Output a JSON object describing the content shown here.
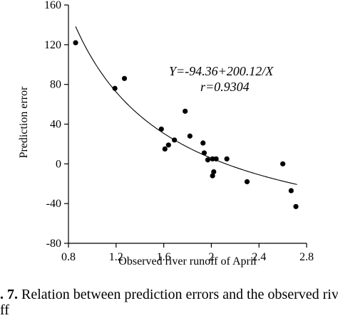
{
  "chart_data": {
    "type": "scatter",
    "xlabel": "Observed river runoff of April",
    "ylabel": "Prediction error",
    "xlim": [
      0.8,
      2.8
    ],
    "ylim": [
      -80,
      160
    ],
    "x_ticks": [
      "0.8",
      "1.2",
      "1.6",
      "2",
      "2.4",
      "2.8"
    ],
    "y_ticks": [
      "160",
      "120",
      "80",
      "40",
      "0",
      "-40",
      "-80"
    ],
    "x_tick_values": [
      0.8,
      1.2,
      1.6,
      2.0,
      2.4,
      2.8
    ],
    "y_tick_values": [
      160,
      120,
      80,
      40,
      0,
      -40,
      -80
    ],
    "grid": false,
    "points": [
      {
        "x": 0.86,
        "y": 122
      },
      {
        "x": 1.19,
        "y": 76
      },
      {
        "x": 1.27,
        "y": 86
      },
      {
        "x": 1.58,
        "y": 35
      },
      {
        "x": 1.61,
        "y": 15
      },
      {
        "x": 1.64,
        "y": 19
      },
      {
        "x": 1.69,
        "y": 24
      },
      {
        "x": 1.78,
        "y": 53
      },
      {
        "x": 1.82,
        "y": 28
      },
      {
        "x": 1.93,
        "y": 21
      },
      {
        "x": 1.94,
        "y": 11
      },
      {
        "x": 1.97,
        "y": 4
      },
      {
        "x": 2.01,
        "y": 5
      },
      {
        "x": 2.01,
        "y": -12
      },
      {
        "x": 2.02,
        "y": -8
      },
      {
        "x": 2.04,
        "y": 5
      },
      {
        "x": 2.13,
        "y": 5
      },
      {
        "x": 2.3,
        "y": -18
      },
      {
        "x": 2.6,
        "y": 0
      },
      {
        "x": 2.67,
        "y": -27
      },
      {
        "x": 2.71,
        "y": -43
      }
    ],
    "fit": {
      "equation_text": "Y=-94.36+200.12/X",
      "r_text": "r=0.9304",
      "intercept": -94.36,
      "coefficient": 200.12,
      "x_range": [
        0.86,
        2.72
      ]
    }
  },
  "caption": {
    "fig_label": ". 7.",
    "text": " Relation between prediction errors and the observed river",
    "second_line": "ff"
  }
}
